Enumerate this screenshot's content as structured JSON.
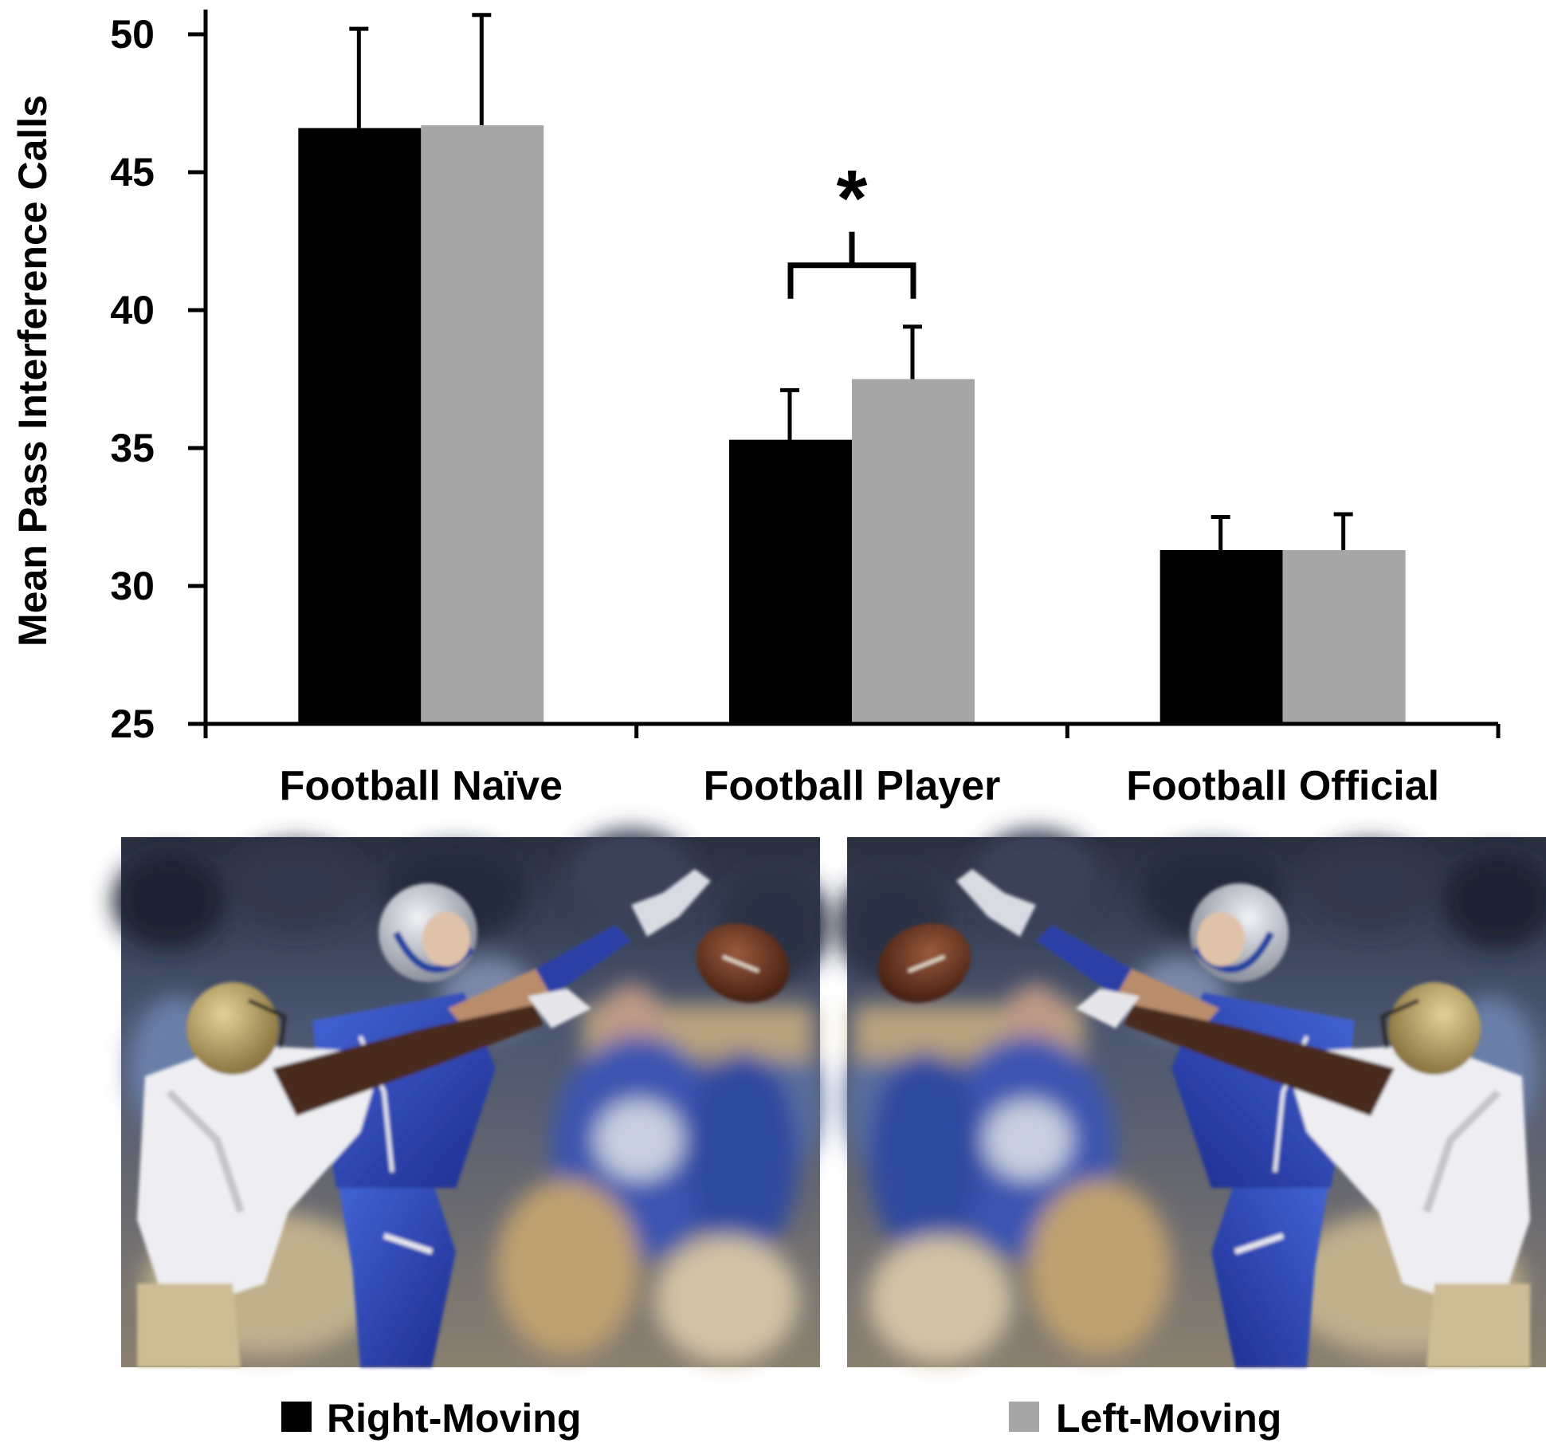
{
  "chart_data": {
    "type": "bar",
    "title": "",
    "xlabel": "",
    "ylabel": "Mean Pass Interference Calls",
    "ylim": [
      25,
      50
    ],
    "yticks": [
      "25",
      "30",
      "35",
      "40",
      "45",
      "50"
    ],
    "grid": false,
    "categories": [
      "Football Naïve",
      "Football Player",
      "Football Official"
    ],
    "series": [
      {
        "name": "Right-Moving",
        "color": "#000000",
        "values": [
          46.6,
          35.3,
          31.3
        ],
        "errors": [
          3.6,
          1.8,
          1.2
        ]
      },
      {
        "name": "Left-Moving",
        "color": "#a6a6a6",
        "values": [
          46.7,
          37.5,
          31.3
        ],
        "errors": [
          4.0,
          1.9,
          1.3
        ]
      }
    ],
    "annotations": [
      {
        "text": "*",
        "category": "Football Player",
        "meaning": "significance-bracket"
      }
    ],
    "legend": {
      "position": "bottom"
    }
  },
  "photo_panels": [
    {
      "content": "football-pass-interference-photo",
      "orientation": "right-moving"
    },
    {
      "content": "football-pass-interference-photo",
      "orientation": "left-moving"
    }
  ]
}
